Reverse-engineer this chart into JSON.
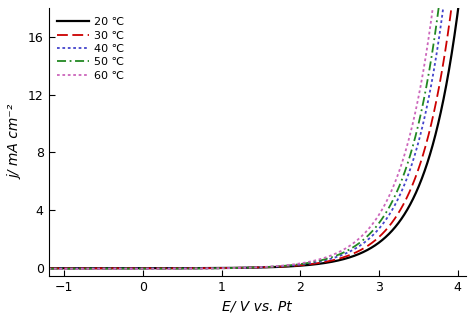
{
  "xlabel": "E/ V vs. Pt",
  "ylabel": "j/ mA cm⁻²",
  "xlim": [
    -1.2,
    4.1
  ],
  "ylim": [
    -0.6,
    18
  ],
  "yticks": [
    0,
    4,
    8,
    12,
    16
  ],
  "xticks": [
    -1,
    0,
    1,
    2,
    3,
    4
  ],
  "curves": [
    {
      "label": "20 ℃",
      "color": "#000000",
      "linestyle": "solid",
      "linewidth": 1.6,
      "a": 0.0018,
      "b": 2.3,
      "shift": 0.0
    },
    {
      "label": "30 ℃",
      "color": "#cc0000",
      "linestyle": "dashed",
      "linewidth": 1.3,
      "dashes": [
        6,
        3
      ],
      "a": 0.0022,
      "b": 2.3,
      "shift": 0.05
    },
    {
      "label": "40 ℃",
      "color": "#4444cc",
      "linestyle": "dotted",
      "linewidth": 1.3,
      "a": 0.0028,
      "b": 2.3,
      "shift": 0.1
    },
    {
      "label": "50 ℃",
      "color": "#228822",
      "linestyle": "dashdot",
      "linewidth": 1.3,
      "a": 0.0032,
      "b": 2.3,
      "shift": 0.08
    },
    {
      "label": "60 ℃",
      "color": "#cc66bb",
      "linestyle": "dotted",
      "linewidth": 1.3,
      "a": 0.0038,
      "b": 2.3,
      "shift": 0.15
    }
  ],
  "legend_loc": "upper left",
  "legend_fontsize": 8,
  "axis_fontsize": 10,
  "tick_fontsize": 9,
  "background_color": "#ffffff"
}
